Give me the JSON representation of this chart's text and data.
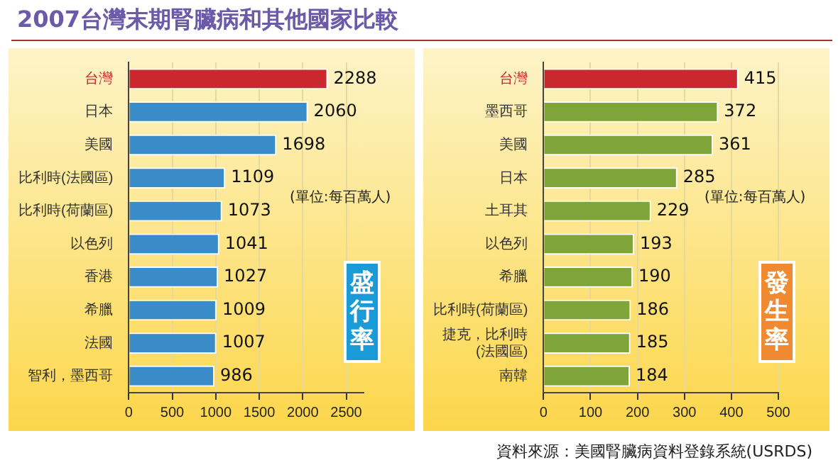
{
  "chart_data": [
    {
      "type": "bar",
      "orientation": "horizontal",
      "title": "2007台灣末期腎臟病和其他國家比較",
      "categories": [
        "台灣",
        "日本",
        "美國",
        "比利時(法國區)",
        "比利時(荷蘭區)",
        "以色列",
        "香港",
        "希臘",
        "法國",
        "智利，墨西哥"
      ],
      "values": [
        2288,
        2060,
        1698,
        1109,
        1073,
        1041,
        1027,
        1009,
        1007,
        986
      ],
      "colors": [
        "#c8282e",
        "#3a8cc8",
        "#3a8cc8",
        "#3a8cc8",
        "#3a8cc8",
        "#3a8cc8",
        "#3a8cc8",
        "#3a8cc8",
        "#3a8cc8",
        "#3a8cc8"
      ],
      "xlim": [
        0,
        2700
      ],
      "xticks": [
        0,
        500,
        1000,
        1500,
        2000,
        2500
      ],
      "grid": "x",
      "data_labels": true,
      "annotations": [
        "(單位:每百萬人)",
        "盛行率"
      ]
    },
    {
      "type": "bar",
      "orientation": "horizontal",
      "categories": [
        "台灣",
        "墨西哥",
        "美國",
        "日本",
        "土耳其",
        "以色列",
        "希臘",
        "比利時(荷蘭區)",
        "捷克，比利時 (法國區)",
        "南韓"
      ],
      "values": [
        415,
        372,
        361,
        285,
        229,
        193,
        190,
        186,
        185,
        184
      ],
      "colors": [
        "#c8282e",
        "#7fa43a",
        "#7fa43a",
        "#7fa43a",
        "#7fa43a",
        "#7fa43a",
        "#7fa43a",
        "#7fa43a",
        "#7fa43a",
        "#7fa43a"
      ],
      "xlim": [
        0,
        500
      ],
      "xticks": [
        0,
        100,
        200,
        300,
        400,
        500
      ],
      "grid": "x",
      "data_labels": true,
      "annotations": [
        "(單位:每百萬人)",
        "發生率",
        "資料來源：美國腎臟病資料登錄系統(USRDS)"
      ]
    }
  ]
}
